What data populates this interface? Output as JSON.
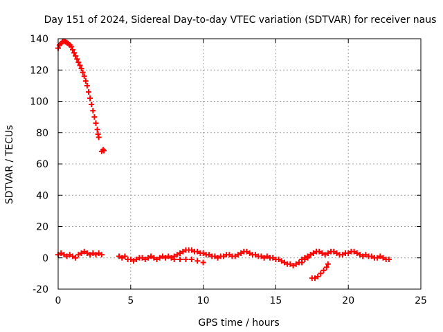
{
  "chart_data": {
    "type": "scatter",
    "title": "Day 151 of 2024, Sidereal Day-to-day VTEC variation (SDTVAR) for receiver naus",
    "xlabel": "GPS time / hours",
    "ylabel": "SDTVAR / TECUs",
    "xlim": [
      0,
      25
    ],
    "ylim": [
      -20,
      140
    ],
    "xticks": [
      0,
      5,
      10,
      15,
      20,
      25
    ],
    "yticks": [
      -20,
      0,
      20,
      40,
      60,
      80,
      100,
      120,
      140
    ],
    "xtick_labels": [
      "0",
      "5",
      "10",
      "15",
      "20",
      "25"
    ],
    "ytick_labels": [
      "-20",
      "0",
      "20",
      "40",
      "60",
      "80",
      "100",
      "120",
      "140"
    ],
    "grid": true,
    "marker": "+",
    "series": [
      {
        "name": "SDTVAR",
        "color": "#ff0000",
        "points": [
          [
            0.0,
            134
          ],
          [
            0.1,
            136
          ],
          [
            0.2,
            137
          ],
          [
            0.3,
            138
          ],
          [
            0.4,
            138.5
          ],
          [
            0.5,
            138
          ],
          [
            0.6,
            137.5
          ],
          [
            0.7,
            137
          ],
          [
            0.8,
            136
          ],
          [
            0.9,
            135
          ],
          [
            1.0,
            133
          ],
          [
            1.1,
            131
          ],
          [
            1.2,
            129
          ],
          [
            1.3,
            127
          ],
          [
            1.4,
            125
          ],
          [
            1.5,
            123
          ],
          [
            1.6,
            121
          ],
          [
            1.7,
            118.5
          ],
          [
            1.8,
            116
          ],
          [
            1.9,
            113
          ],
          [
            2.0,
            110
          ],
          [
            2.1,
            106
          ],
          [
            2.2,
            102
          ],
          [
            2.3,
            98
          ],
          [
            2.4,
            94
          ],
          [
            2.5,
            90
          ],
          [
            2.6,
            86
          ],
          [
            2.7,
            82
          ],
          [
            2.75,
            79
          ],
          [
            2.8,
            77
          ],
          [
            3.0,
            68
          ],
          [
            3.1,
            69
          ],
          [
            3.15,
            68.5
          ],
          [
            0.0,
            2
          ],
          [
            0.2,
            3
          ],
          [
            0.4,
            2
          ],
          [
            0.6,
            1
          ],
          [
            0.8,
            2
          ],
          [
            1.0,
            1
          ],
          [
            1.2,
            0
          ],
          [
            1.4,
            2
          ],
          [
            1.6,
            3
          ],
          [
            1.8,
            4
          ],
          [
            2.0,
            3
          ],
          [
            2.2,
            2
          ],
          [
            2.4,
            3
          ],
          [
            2.6,
            2
          ],
          [
            2.8,
            3
          ],
          [
            3.0,
            2
          ],
          [
            4.2,
            1
          ],
          [
            4.4,
            0
          ],
          [
            4.6,
            1
          ],
          [
            4.8,
            -1
          ],
          [
            5.0,
            -1
          ],
          [
            5.2,
            -2
          ],
          [
            5.4,
            -1
          ],
          [
            5.6,
            0
          ],
          [
            5.8,
            0
          ],
          [
            6.0,
            -1
          ],
          [
            6.2,
            0
          ],
          [
            6.4,
            1
          ],
          [
            6.6,
            0
          ],
          [
            6.8,
            -1
          ],
          [
            7.0,
            0
          ],
          [
            7.2,
            1
          ],
          [
            7.4,
            0
          ],
          [
            7.6,
            1
          ],
          [
            7.8,
            0
          ],
          [
            8.0,
            1
          ],
          [
            8.2,
            2
          ],
          [
            8.4,
            3
          ],
          [
            8.6,
            4
          ],
          [
            8.8,
            5
          ],
          [
            9.0,
            5
          ],
          [
            9.2,
            5
          ],
          [
            9.4,
            4
          ],
          [
            9.6,
            4
          ],
          [
            9.8,
            3
          ],
          [
            10.0,
            3
          ],
          [
            10.2,
            2
          ],
          [
            10.4,
            2
          ],
          [
            10.6,
            1
          ],
          [
            10.8,
            1
          ],
          [
            11.0,
            0
          ],
          [
            8.0,
            -1
          ],
          [
            8.4,
            -1
          ],
          [
            8.8,
            -1
          ],
          [
            9.2,
            -1
          ],
          [
            9.6,
            -2
          ],
          [
            10.0,
            -3
          ],
          [
            11.2,
            1
          ],
          [
            11.4,
            1
          ],
          [
            11.6,
            2
          ],
          [
            11.8,
            2
          ],
          [
            12.0,
            1
          ],
          [
            12.2,
            1
          ],
          [
            12.4,
            2
          ],
          [
            12.6,
            3
          ],
          [
            12.8,
            4
          ],
          [
            13.0,
            4
          ],
          [
            13.2,
            3
          ],
          [
            13.4,
            2
          ],
          [
            13.6,
            2
          ],
          [
            13.8,
            1
          ],
          [
            14.0,
            1
          ],
          [
            14.2,
            0
          ],
          [
            14.4,
            1
          ],
          [
            14.6,
            0
          ],
          [
            14.8,
            0
          ],
          [
            15.0,
            -1
          ],
          [
            15.2,
            -1
          ],
          [
            15.4,
            -2
          ],
          [
            15.6,
            -3
          ],
          [
            15.8,
            -4
          ],
          [
            16.0,
            -4
          ],
          [
            16.2,
            -5
          ],
          [
            16.4,
            -4
          ],
          [
            16.6,
            -3
          ],
          [
            16.8,
            -1
          ],
          [
            17.0,
            0
          ],
          [
            17.2,
            1
          ],
          [
            17.4,
            2
          ],
          [
            17.6,
            3
          ],
          [
            17.8,
            4
          ],
          [
            18.0,
            4
          ],
          [
            18.2,
            3
          ],
          [
            18.4,
            2
          ],
          [
            18.6,
            3
          ],
          [
            18.8,
            4
          ],
          [
            19.0,
            4
          ],
          [
            19.2,
            3
          ],
          [
            19.4,
            2
          ],
          [
            19.6,
            2
          ],
          [
            19.8,
            3
          ],
          [
            20.0,
            3
          ],
          [
            20.2,
            4
          ],
          [
            20.4,
            4
          ],
          [
            20.6,
            3
          ],
          [
            20.8,
            2
          ],
          [
            21.0,
            1
          ],
          [
            21.2,
            2
          ],
          [
            21.4,
            1
          ],
          [
            21.6,
            1
          ],
          [
            21.8,
            0
          ],
          [
            22.0,
            0
          ],
          [
            22.2,
            1
          ],
          [
            22.4,
            0
          ],
          [
            22.6,
            -1
          ],
          [
            22.8,
            -1
          ],
          [
            17.5,
            -13
          ],
          [
            17.7,
            -13
          ],
          [
            17.9,
            -12
          ],
          [
            18.1,
            -10
          ],
          [
            18.3,
            -8
          ],
          [
            18.5,
            -6
          ],
          [
            18.6,
            -4
          ],
          [
            16.8,
            -3
          ],
          [
            17.0,
            -1
          ],
          [
            17.2,
            0
          ],
          [
            17.4,
            2
          ],
          [
            17.6,
            3
          ],
          [
            17.8,
            4
          ]
        ]
      }
    ]
  }
}
